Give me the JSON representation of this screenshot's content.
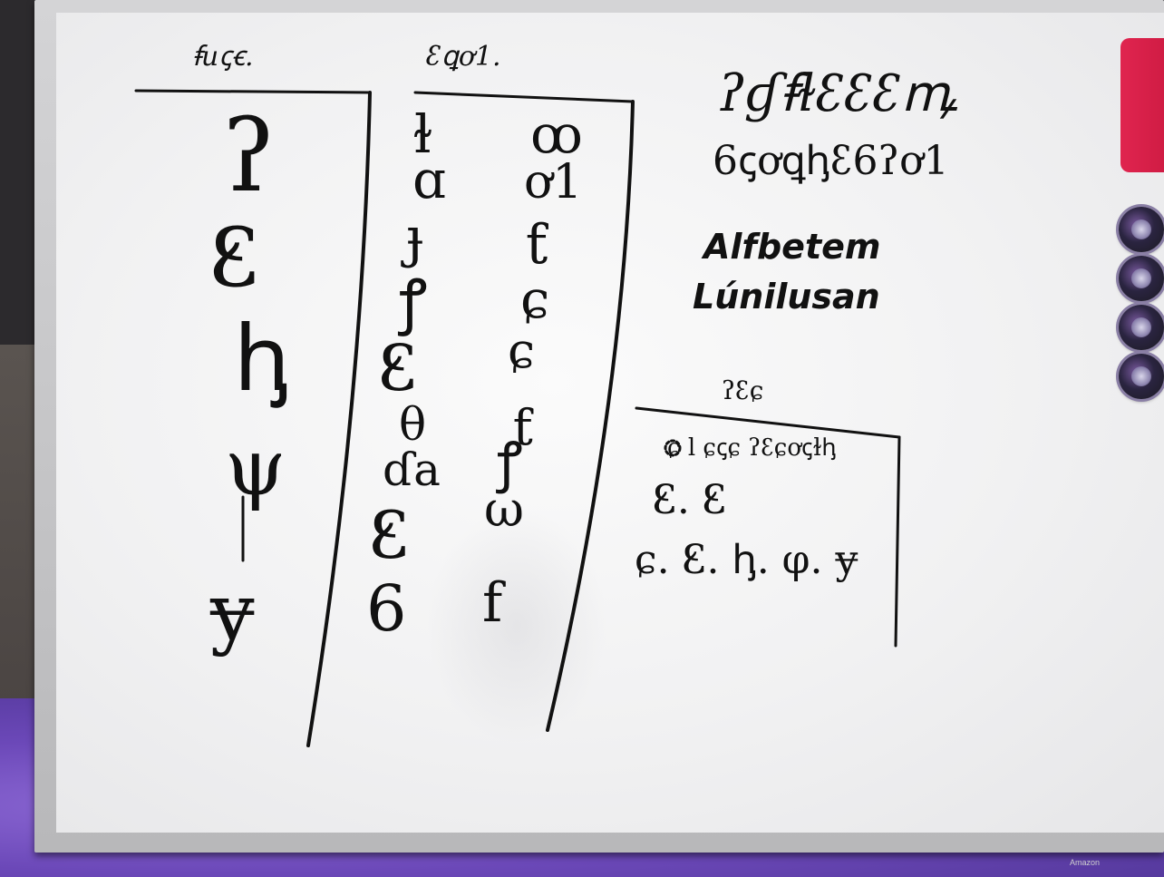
{
  "whiteboard": {
    "frame_color": "#c8c8ca",
    "surface_color": "#f4f4f5",
    "ink_color": "#111111"
  },
  "left_column": {
    "header": "ꞙuꞔꞓ.",
    "glyphs": [
      "ʔ",
      "Ꜫ",
      "ꞕ",
      "ψ",
      "ɏ"
    ]
  },
  "middle_column": {
    "header": "ꜫꝗơ1.",
    "pairs": [
      [
        "ɫ",
        "ꝏ"
      ],
      [
        "ɑ",
        "ơ1"
      ],
      [
        "ɟ",
        "ƭ"
      ],
      [
        "ꝭ",
        "ɕ"
      ],
      [
        "Ꜫ",
        "ɕ"
      ],
      [
        "θ",
        "ƭ"
      ],
      [
        "ɗa",
        "ꝭ"
      ],
      [
        "Ꜫ",
        "ω"
      ],
      [
        "6",
        "f"
      ]
    ]
  },
  "title_block": {
    "script_line_1": "ʔɠꞙɫꜫꜫꜫꝳ",
    "script_line_2": "6ꞔơꝗꞕꜫ6ʔơ1",
    "latin_line_1": "Alfbetem",
    "latin_line_2": "Lúnilusan"
  },
  "right_box": {
    "header": "ʔꜫɕ",
    "row_1": "ɕ ⅼ ɕꞔɕ ʔꜫɕơꞔɫꞕ",
    "row_2": "Ꜫ. Ꜫ",
    "row_3": "ɕ. Ꜫ. ꞕ. φ. ɏ"
  },
  "decor": {
    "eraser": "red-eraser",
    "magnets": [
      "magnet",
      "magnet",
      "magnet",
      "magnet"
    ],
    "brand": "Amazon"
  }
}
